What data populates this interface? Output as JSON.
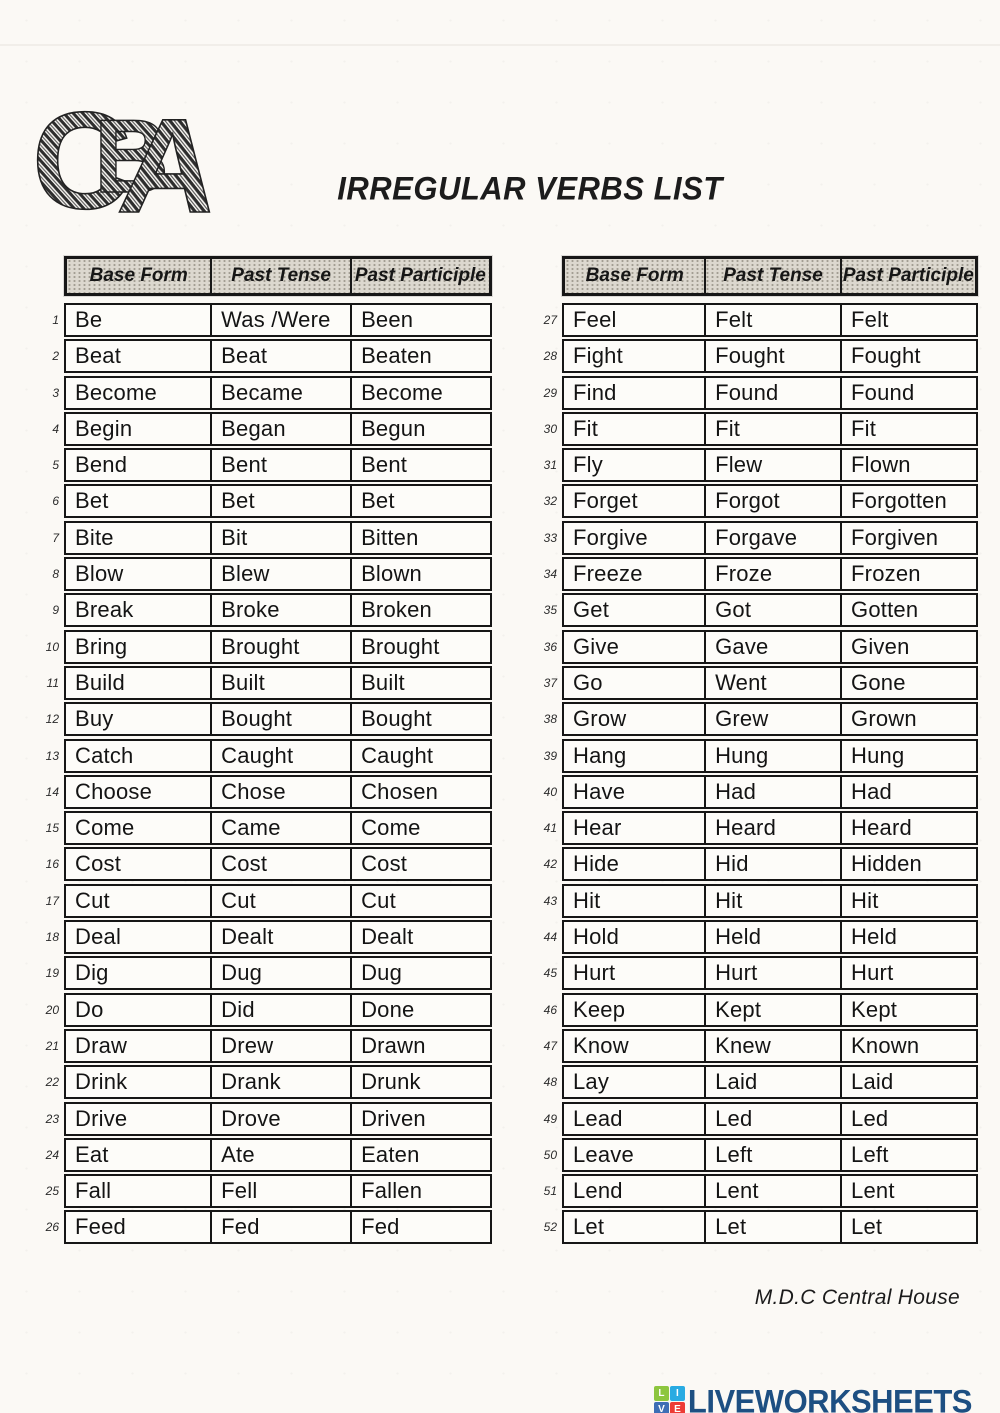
{
  "page": {
    "logo_letters": "CBA",
    "title": "IRREGULAR VERBS LIST",
    "footer_note": "M.D.C Central House",
    "brand": {
      "name": "LIVEWORKSHEETS",
      "text_color": "#1d4f82",
      "tiles": [
        {
          "letter": "L",
          "color": "#8dc63f"
        },
        {
          "letter": "I",
          "color": "#29abe2"
        },
        {
          "letter": "V",
          "color": "#3d6db5"
        },
        {
          "letter": "E",
          "color": "#ed3b35"
        }
      ]
    }
  },
  "tables": [
    {
      "headers": [
        "Base Form",
        "Past Tense",
        "Past Participle"
      ],
      "rows": [
        [
          1,
          "Be",
          "Was /Were",
          "Been"
        ],
        [
          2,
          "Beat",
          "Beat",
          "Beaten"
        ],
        [
          3,
          "Become",
          "Became",
          "Become"
        ],
        [
          4,
          "Begin",
          "Began",
          "Begun"
        ],
        [
          5,
          "Bend",
          "Bent",
          "Bent"
        ],
        [
          6,
          "Bet",
          "Bet",
          "Bet"
        ],
        [
          7,
          "Bite",
          "Bit",
          "Bitten"
        ],
        [
          8,
          "Blow",
          "Blew",
          "Blown"
        ],
        [
          9,
          "Break",
          "Broke",
          "Broken"
        ],
        [
          10,
          "Bring",
          "Brought",
          "Brought"
        ],
        [
          11,
          "Build",
          "Built",
          "Built"
        ],
        [
          12,
          "Buy",
          "Bought",
          "Bought"
        ],
        [
          13,
          "Catch",
          "Caught",
          "Caught"
        ],
        [
          14,
          "Choose",
          "Chose",
          "Chosen"
        ],
        [
          15,
          "Come",
          "Came",
          "Come"
        ],
        [
          16,
          "Cost",
          "Cost",
          "Cost"
        ],
        [
          17,
          "Cut",
          "Cut",
          "Cut"
        ],
        [
          18,
          "Deal",
          "Dealt",
          "Dealt"
        ],
        [
          19,
          "Dig",
          "Dug",
          "Dug"
        ],
        [
          20,
          "Do",
          "Did",
          "Done"
        ],
        [
          21,
          "Draw",
          "Drew",
          "Drawn"
        ],
        [
          22,
          "Drink",
          "Drank",
          "Drunk"
        ],
        [
          23,
          "Drive",
          "Drove",
          "Driven"
        ],
        [
          24,
          "Eat",
          "Ate",
          "Eaten"
        ],
        [
          25,
          "Fall",
          "Fell",
          "Fallen"
        ],
        [
          26,
          "Feed",
          "Fed",
          "Fed"
        ]
      ]
    },
    {
      "headers": [
        "Base Form",
        "Past Tense",
        "Past Participle"
      ],
      "rows": [
        [
          27,
          "Feel",
          "Felt",
          "Felt"
        ],
        [
          28,
          "Fight",
          "Fought",
          "Fought"
        ],
        [
          29,
          "Find",
          "Found",
          "Found"
        ],
        [
          30,
          "Fit",
          "Fit",
          "Fit"
        ],
        [
          31,
          "Fly",
          "Flew",
          "Flown"
        ],
        [
          32,
          "Forget",
          "Forgot",
          "Forgotten"
        ],
        [
          33,
          "Forgive",
          "Forgave",
          "Forgiven"
        ],
        [
          34,
          "Freeze",
          "Froze",
          "Frozen"
        ],
        [
          35,
          "Get",
          "Got",
          "Gotten"
        ],
        [
          36,
          "Give",
          "Gave",
          "Given"
        ],
        [
          37,
          "Go",
          "Went",
          "Gone"
        ],
        [
          38,
          "Grow",
          "Grew",
          "Grown"
        ],
        [
          39,
          "Hang",
          "Hung",
          "Hung"
        ],
        [
          40,
          "Have",
          "Had",
          "Had"
        ],
        [
          41,
          "Hear",
          "Heard",
          "Heard"
        ],
        [
          42,
          "Hide",
          "Hid",
          "Hidden"
        ],
        [
          43,
          "Hit",
          "Hit",
          "Hit"
        ],
        [
          44,
          "Hold",
          "Held",
          "Held"
        ],
        [
          45,
          "Hurt",
          "Hurt",
          "Hurt"
        ],
        [
          46,
          "Keep",
          "Kept",
          "Kept"
        ],
        [
          47,
          "Know",
          "Knew",
          "Known"
        ],
        [
          48,
          "Lay",
          "Laid",
          "Laid"
        ],
        [
          49,
          "Lead",
          "Led",
          "Led"
        ],
        [
          50,
          "Leave",
          "Left",
          "Left"
        ],
        [
          51,
          "Lend",
          "Lent",
          "Lent"
        ],
        [
          52,
          "Let",
          "Let",
          "Let"
        ]
      ]
    }
  ]
}
